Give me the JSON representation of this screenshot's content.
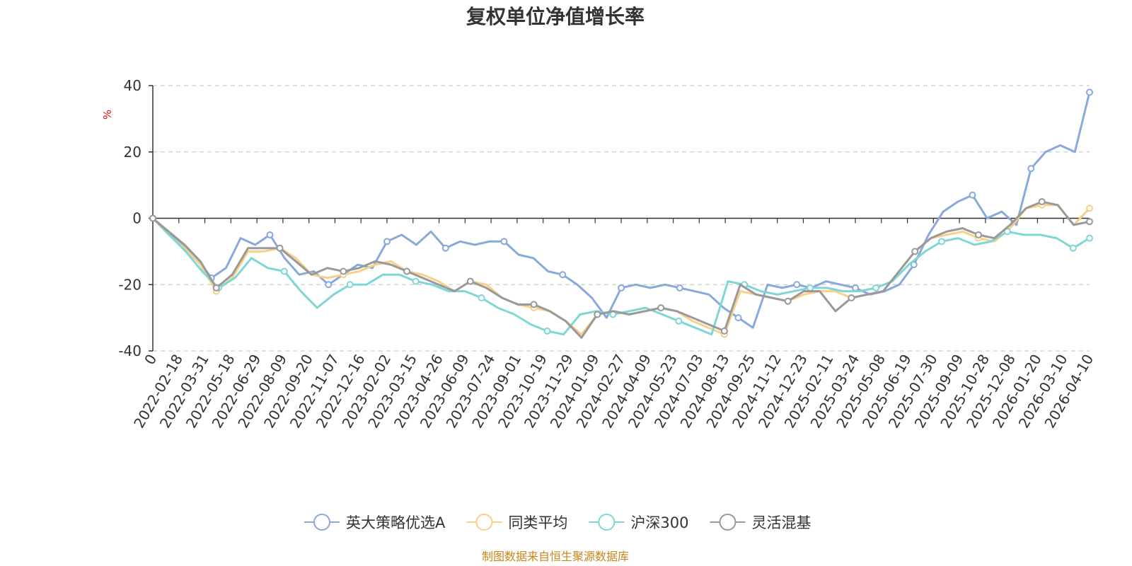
{
  "chart_data": {
    "type": "line",
    "title": "复权单位净值增长率",
    "ylabel": "%",
    "ylim": [
      -40,
      40
    ],
    "yticks": [
      "40",
      "20",
      "0",
      "-20",
      "-40"
    ],
    "grid": true,
    "legend_position": "bottom",
    "x_tick_labels": [
      "0",
      "2022-02-18",
      "2022-03-31",
      "2022-05-18",
      "2022-06-29",
      "2022-08-09",
      "2022-09-20",
      "2022-11-07",
      "2022-12-16",
      "2023-02-02",
      "2023-03-15",
      "2023-04-26",
      "2023-06-09",
      "2023-07-24",
      "2023-09-01",
      "2023-10-19",
      "2023-11-29",
      "2024-01-09",
      "2024-02-27",
      "2024-04-09",
      "2024-05-23",
      "2024-07-03",
      "2024-08-13",
      "2024-09-25",
      "2024-11-12",
      "2024-12-23",
      "2025-02-11",
      "2025-03-24",
      "2025-05-08",
      "2025-06-19",
      "2025-07-30",
      "2025-09-09",
      "2025-10-28",
      "2025-12-08",
      "2026-01-20",
      "2026-03-10",
      "2026-04-10"
    ],
    "series": [
      {
        "name": "英大策略优选A",
        "color": "#8aa9db",
        "values": [
          0,
          -4,
          -8,
          -12,
          -18,
          -15,
          -6,
          -8,
          -5,
          -12,
          -17,
          -16,
          -20,
          -17,
          -14,
          -15,
          -7,
          -5,
          -8,
          -4,
          -9,
          -7,
          -8,
          -7,
          -7,
          -11,
          -12,
          -16,
          -17,
          -20,
          -24,
          -30,
          -21,
          -20,
          -21,
          -20,
          -21,
          -22,
          -23,
          -27,
          -30,
          -33,
          -20,
          -21,
          -20,
          -21,
          -19,
          -20,
          -21,
          -23,
          -22,
          -20,
          -14,
          -5,
          2,
          5,
          7,
          0,
          2,
          -2,
          15,
          20,
          22,
          20,
          38
        ]
      },
      {
        "name": "同类平均",
        "color": "#f7d08a",
        "values": [
          0,
          -5,
          -9,
          -14,
          -22,
          -18,
          -10,
          -10,
          -9,
          -12,
          -17,
          -18,
          -17,
          -16,
          -14,
          -13,
          -16,
          -17,
          -19,
          -22,
          -19,
          -20,
          -24,
          -26,
          -27,
          -28,
          -31,
          -35,
          -29,
          -28,
          -29,
          -28,
          -27,
          -28,
          -31,
          -33,
          -35,
          -22,
          -23,
          -24,
          -25,
          -23,
          -22,
          -22,
          -24,
          -23,
          -22,
          -16,
          -10,
          -6,
          -5,
          -4,
          -6,
          -7,
          -3,
          3,
          4,
          4,
          -2,
          3
        ]
      },
      {
        "name": "沪深300",
        "color": "#7fd6d6",
        "values": [
          0,
          -5,
          -10,
          -16,
          -21,
          -18,
          -12,
          -15,
          -16,
          -22,
          -27,
          -23,
          -20,
          -20,
          -17,
          -17,
          -19,
          -20,
          -22,
          -22,
          -24,
          -27,
          -29,
          -32,
          -34,
          -35,
          -29,
          -28,
          -29,
          -28,
          -27,
          -29,
          -31,
          -33,
          -35,
          -19,
          -20,
          -22,
          -23,
          -22,
          -21,
          -21,
          -22,
          -22,
          -21,
          -19,
          -14,
          -10,
          -7,
          -6,
          -8,
          -7,
          -4,
          -5,
          -5,
          -6,
          -9,
          -6
        ]
      },
      {
        "name": "灵活混基",
        "color": "#999999",
        "values": [
          0,
          -4,
          -8,
          -13,
          -21,
          -17,
          -9,
          -9,
          -9,
          -13,
          -17,
          -15,
          -16,
          -15,
          -13,
          -14,
          -16,
          -18,
          -20,
          -22,
          -19,
          -21,
          -24,
          -26,
          -26,
          -28,
          -31,
          -36,
          -29,
          -28,
          -29,
          -28,
          -27,
          -28,
          -30,
          -32,
          -34,
          -20,
          -23,
          -24,
          -25,
          -22,
          -22,
          -28,
          -24,
          -23,
          -22,
          -16,
          -10,
          -6,
          -4,
          -3,
          -5,
          -6,
          -2,
          3,
          5,
          4,
          -2,
          -1
        ]
      }
    ]
  },
  "source_note": "制图数据来自恒生聚源数据库"
}
